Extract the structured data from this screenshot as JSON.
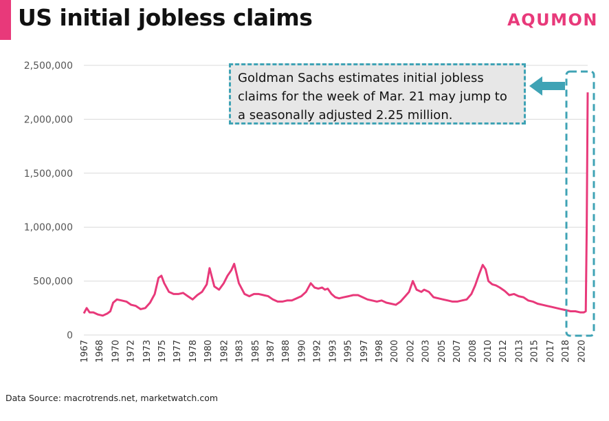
{
  "header": {
    "title": "US initial jobless claims",
    "brand": "AQUMON"
  },
  "callout": {
    "text": "Goldman Sachs estimates initial jobless claims for the week of Mar. 21 may jump to a seasonally adjusted 2.25 million."
  },
  "footer": {
    "source": "Data Source: macrotrends.net, marketwatch.com"
  },
  "colors": {
    "line": "#e8397a",
    "accent": "#e8397a",
    "callout_border": "#3fa3b5",
    "callout_bg": "#e7e7e7"
  },
  "chart_data": {
    "type": "line",
    "title": "US initial jobless claims",
    "xlabel": "",
    "ylabel": "",
    "xlim": [
      1967,
      2020.3
    ],
    "ylim": [
      0,
      2500000
    ],
    "yticks": [
      0,
      500000,
      1000000,
      1500000,
      2000000,
      2500000
    ],
    "ytick_labels": [
      "0",
      "500,000",
      "1,000,000",
      "1,500,000",
      "2,000,000",
      "2,500,000"
    ],
    "xtick_labels": [
      "1967",
      "1968",
      "1970",
      "1972",
      "1973",
      "1975",
      "1977",
      "1978",
      "1980",
      "1982",
      "1983",
      "1985",
      "1987",
      "1988",
      "1990",
      "1992",
      "1993",
      "1995",
      "1997",
      "1998",
      "2000",
      "2002",
      "2003",
      "2005",
      "2007",
      "2008",
      "2010",
      "2012",
      "2013",
      "2015",
      "2017",
      "2018",
      "2020"
    ],
    "xtick_positions": [
      1967,
      1968.6,
      1970.3,
      1971.9,
      1973.6,
      1975.2,
      1976.8,
      1978.5,
      1980.1,
      1981.8,
      1983.4,
      1985.1,
      1986.7,
      1988.3,
      1990.0,
      1991.6,
      1993.3,
      1994.9,
      1996.6,
      1998.2,
      1999.8,
      2001.5,
      2003.1,
      2004.8,
      2006.4,
      2008.1,
      2009.7,
      2011.3,
      2013.0,
      2014.6,
      2016.3,
      2017.9,
      2019.6
    ],
    "grid": true,
    "series": [
      {
        "x": [
          1967.0,
          1967.3,
          1967.6,
          1968.0,
          1968.5,
          1969.0,
          1969.5,
          1969.8,
          1970.1,
          1970.5,
          1971.0,
          1971.5,
          1972.0,
          1972.5,
          1973.0,
          1973.5,
          1974.0,
          1974.5,
          1974.9,
          1975.2,
          1975.5,
          1976.0,
          1976.5,
          1977.0,
          1977.5,
          1978.0,
          1978.5,
          1979.0,
          1979.5,
          1980.0,
          1980.3,
          1980.8,
          1981.3,
          1981.8,
          1982.2,
          1982.6,
          1982.9,
          1983.4,
          1984.0,
          1984.5,
          1985.0,
          1985.5,
          1986.0,
          1986.5,
          1987.0,
          1987.5,
          1988.0,
          1988.5,
          1989.0,
          1989.5,
          1990.0,
          1990.5,
          1991.0,
          1991.4,
          1991.8,
          1992.2,
          1992.5,
          1992.8,
          1993.2,
          1993.6,
          1994.0,
          1994.5,
          1995.0,
          1995.5,
          1996.0,
          1996.5,
          1997.0,
          1997.5,
          1998.0,
          1998.5,
          1999.0,
          1999.5,
          2000.0,
          2000.5,
          2001.0,
          2001.4,
          2001.8,
          2002.2,
          2002.7,
          2003.0,
          2003.5,
          2004.0,
          2004.5,
          2005.0,
          2005.5,
          2006.0,
          2006.5,
          2007.0,
          2007.5,
          2008.0,
          2008.4,
          2008.8,
          2009.2,
          2009.5,
          2009.8,
          2010.2,
          2010.6,
          2011.0,
          2011.5,
          2012.0,
          2012.5,
          2013.0,
          2013.5,
          2014.0,
          2014.5,
          2015.0,
          2015.5,
          2016.0,
          2016.5,
          2017.0,
          2017.5,
          2018.0,
          2018.5,
          2019.0,
          2019.5,
          2019.9,
          2020.1,
          2020.2,
          2020.3
        ],
        "values": [
          200000,
          250000,
          210000,
          210000,
          190000,
          180000,
          200000,
          220000,
          300000,
          330000,
          320000,
          310000,
          280000,
          270000,
          240000,
          250000,
          300000,
          380000,
          530000,
          550000,
          480000,
          400000,
          380000,
          380000,
          390000,
          360000,
          330000,
          370000,
          400000,
          470000,
          620000,
          450000,
          420000,
          480000,
          550000,
          600000,
          660000,
          480000,
          380000,
          360000,
          380000,
          380000,
          370000,
          360000,
          330000,
          310000,
          310000,
          320000,
          320000,
          340000,
          360000,
          400000,
          480000,
          440000,
          430000,
          440000,
          420000,
          430000,
          380000,
          350000,
          340000,
          350000,
          360000,
          370000,
          370000,
          350000,
          330000,
          320000,
          310000,
          320000,
          300000,
          290000,
          280000,
          310000,
          360000,
          400000,
          500000,
          420000,
          400000,
          420000,
          400000,
          350000,
          340000,
          330000,
          320000,
          310000,
          310000,
          320000,
          330000,
          380000,
          460000,
          560000,
          650000,
          610000,
          500000,
          470000,
          460000,
          440000,
          410000,
          370000,
          380000,
          360000,
          350000,
          320000,
          310000,
          290000,
          280000,
          270000,
          260000,
          250000,
          240000,
          230000,
          220000,
          220000,
          210000,
          210000,
          220000,
          1000000,
          2250000
        ]
      }
    ],
    "annotation": "Goldman Sachs estimates initial jobless claims for the week of Mar. 21 may jump to a seasonally adjusted 2.25 million."
  }
}
